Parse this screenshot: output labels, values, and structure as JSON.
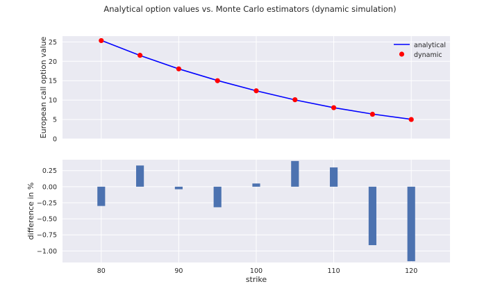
{
  "figure_title": "Analytical option values vs. Monte Carlo estimators (dynamic simulation)",
  "colors": {
    "panel_bg": "#EAEAF2",
    "grid": "#FFFFFF",
    "analytical_line": "#0000FF",
    "dynamic_marker": "#FF0000",
    "bar": "#4C72B0",
    "text": "#262626"
  },
  "chart_data": [
    {
      "type": "line",
      "ylabel": "European call option value",
      "xlim": [
        75,
        125
      ],
      "ylim": [
        0,
        26.5
      ],
      "yticks": [
        0,
        5,
        10,
        15,
        20,
        25
      ],
      "xticks": [
        80,
        90,
        100,
        110,
        120
      ],
      "show_xtick_labels": false,
      "grid": true,
      "legend": {
        "position": "top-right",
        "entries": [
          "analytical",
          "dynamic"
        ]
      },
      "x": [
        80,
        85,
        90,
        95,
        100,
        105,
        110,
        115,
        120
      ],
      "series": [
        {
          "name": "analytical",
          "style": "line",
          "values": [
            25.4,
            21.5,
            18.05,
            15.05,
            12.4,
            10.05,
            8.05,
            6.4,
            5.05
          ]
        },
        {
          "name": "dynamic",
          "style": "marker",
          "values": [
            25.35,
            21.55,
            18.05,
            15.0,
            12.4,
            10.1,
            8.05,
            6.35,
            5.0
          ]
        }
      ]
    },
    {
      "type": "bar",
      "ylabel": "difference in %",
      "xlabel": "strike",
      "xlim": [
        75,
        125
      ],
      "ylim": [
        -1.18,
        0.42
      ],
      "yticks": [
        -1.0,
        -0.75,
        -0.5,
        -0.25,
        0.0,
        0.25
      ],
      "ytick_labels": [
        "−1.00",
        "−0.75",
        "−0.50",
        "−0.25",
        "0.00",
        "0.25"
      ],
      "xticks": [
        80,
        90,
        100,
        110,
        120
      ],
      "xtick_labels": [
        "80",
        "90",
        "100",
        "110",
        "120"
      ],
      "grid": true,
      "bar_width": 1.0,
      "categories": [
        80,
        85,
        90,
        95,
        100,
        105,
        110,
        115,
        120
      ],
      "values": [
        -0.3,
        0.33,
        -0.04,
        -0.32,
        0.05,
        0.4,
        0.3,
        -0.91,
        -1.16
      ]
    }
  ]
}
